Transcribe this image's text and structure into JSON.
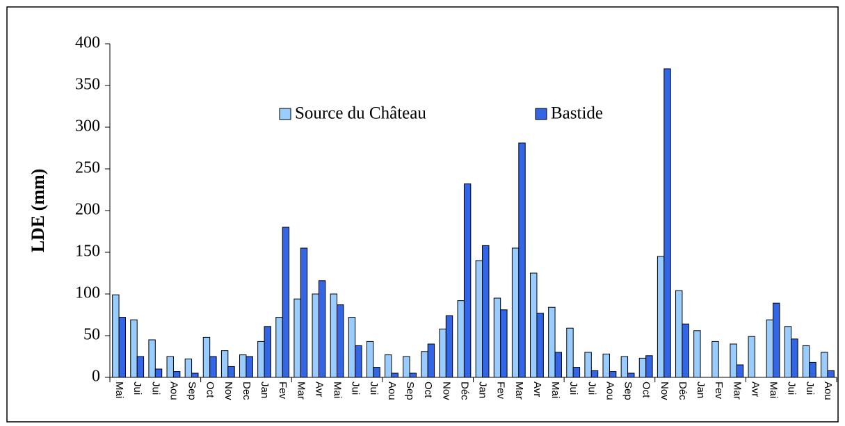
{
  "chart_data": {
    "type": "bar",
    "y_label": "LDE (mm)",
    "categories": [
      "Mai",
      "Jui",
      "Jui",
      "Aou",
      "Sep",
      "Oct",
      "Nov",
      "Dec",
      "Jan",
      "Fev",
      "Mar",
      "Avr",
      "Mai",
      "Jui",
      "Jui",
      "Aou",
      "Sep",
      "Oct",
      "Nov",
      "Déc",
      "Jan",
      "Fev",
      "Mar",
      "Avr",
      "Mai",
      "Jui",
      "Jui",
      "Aou",
      "Sep",
      "Oct",
      "Nov",
      "Déc",
      "Jan",
      "Fev",
      "Mar",
      "Avr",
      "Mai",
      "Jui",
      "Jui",
      "Aou"
    ],
    "series": [
      {
        "name": "Source du Château",
        "color": "#99ccff",
        "values": [
          99,
          69,
          45,
          25,
          22,
          48,
          32,
          27,
          43,
          72,
          94,
          100,
          100,
          72,
          43,
          27,
          25,
          31,
          58,
          92,
          140,
          95,
          155,
          125,
          84,
          59,
          30,
          28,
          25,
          23,
          145,
          104,
          56,
          43,
          40,
          49,
          69,
          61,
          38,
          30
        ]
      },
      {
        "name": "Bastide",
        "color": "#3366e6",
        "values": [
          72,
          25,
          10,
          7,
          5,
          25,
          13,
          25,
          61,
          180,
          155,
          116,
          87,
          38,
          12,
          5,
          5,
          40,
          74,
          232,
          158,
          81,
          281,
          77,
          30,
          12,
          8,
          7,
          5,
          26,
          370,
          64,
          null,
          null,
          15,
          null,
          89,
          46,
          18,
          8
        ]
      }
    ],
    "ylim": [
      0,
      400
    ],
    "yticks": [
      0,
      50,
      100,
      150,
      200,
      250,
      300,
      350,
      400
    ]
  }
}
